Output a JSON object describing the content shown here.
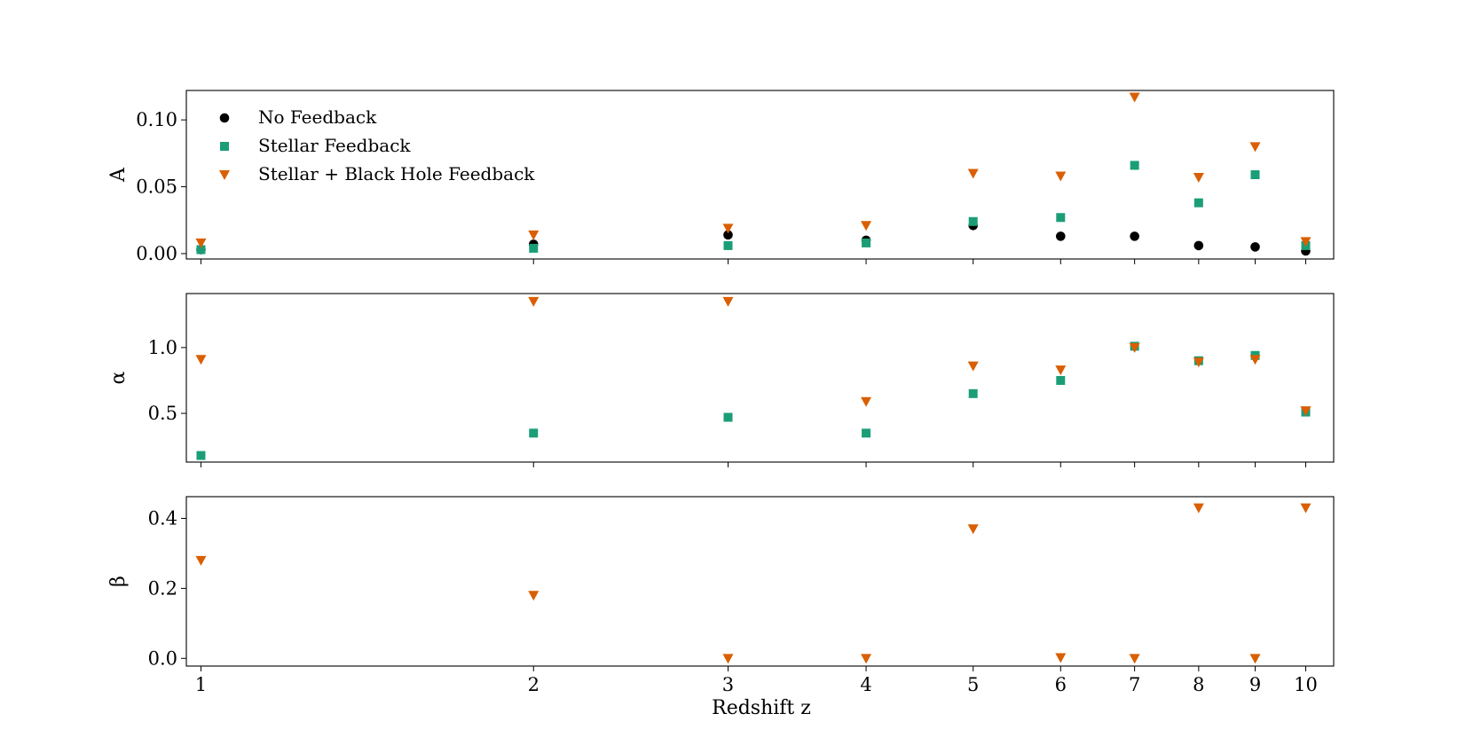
{
  "chart_data": {
    "type": "scatter",
    "x_scale": "log",
    "xlabel": "Redshift z",
    "x_ticks": [
      1,
      2,
      3,
      4,
      5,
      6,
      7,
      8,
      9,
      10
    ],
    "x_tick_labels": [
      "1",
      "2",
      "3",
      "4",
      "5",
      "6",
      "7",
      "8",
      "9",
      "10"
    ],
    "xlim": [
      0.97,
      10.6
    ],
    "grid": false,
    "legend": {
      "placement": "top-left",
      "panel": "A",
      "entries": [
        "No Feedback",
        "Stellar Feedback",
        "Stellar + Black Hole Feedback"
      ]
    },
    "series_styles": [
      {
        "name": "No Feedback",
        "marker": "circle",
        "color": "#000000"
      },
      {
        "name": "Stellar Feedback",
        "marker": "square",
        "color": "#1b9e77"
      },
      {
        "name": "Stellar + Black Hole Feedback",
        "marker": "triangle-down",
        "color": "#d95f02"
      }
    ],
    "panels": [
      {
        "ylabel": "A",
        "ylim": [
          -0.004,
          0.122
        ],
        "y_ticks": [
          0.0,
          0.05,
          0.1
        ],
        "y_tick_labels": [
          "0.00",
          "0.05",
          "0.10"
        ],
        "series": [
          {
            "name": "No Feedback",
            "x": [
              1,
              2,
              3,
              4,
              5,
              6,
              7,
              8,
              9,
              10
            ],
            "y": [
              0.003,
              0.007,
              0.014,
              0.01,
              0.021,
              0.013,
              0.013,
              0.006,
              0.005,
              0.002
            ]
          },
          {
            "name": "Stellar Feedback",
            "x": [
              1,
              2,
              3,
              4,
              5,
              6,
              7,
              8,
              9,
              10
            ],
            "y": [
              0.003,
              0.004,
              0.006,
              0.008,
              0.024,
              0.027,
              0.066,
              0.038,
              0.059,
              0.006
            ]
          },
          {
            "name": "Stellar + Black Hole Feedback",
            "x": [
              1,
              2,
              3,
              4,
              5,
              6,
              7,
              8,
              9,
              10
            ],
            "y": [
              0.008,
              0.014,
              0.019,
              0.021,
              0.06,
              0.058,
              0.117,
              0.057,
              0.08,
              0.009
            ]
          }
        ]
      },
      {
        "ylabel": "α",
        "ylim": [
          0.13,
          1.41
        ],
        "y_ticks": [
          0.5,
          1.0
        ],
        "y_tick_labels": [
          "0.5",
          "1.0"
        ],
        "series": [
          {
            "name": "Stellar Feedback",
            "x": [
              1,
              2,
              3,
              4,
              5,
              6,
              7,
              8,
              9,
              10
            ],
            "y": [
              0.18,
              0.35,
              0.47,
              0.35,
              0.65,
              0.75,
              1.01,
              0.9,
              0.94,
              0.51
            ]
          },
          {
            "name": "Stellar + Black Hole Feedback",
            "x": [
              1,
              2,
              3,
              4,
              5,
              6,
              7,
              8,
              9,
              10
            ],
            "y": [
              0.91,
              1.35,
              1.35,
              0.59,
              0.86,
              0.83,
              1.0,
              0.89,
              0.91,
              0.52
            ]
          }
        ]
      },
      {
        "ylabel": "β",
        "ylim": [
          -0.022,
          0.462
        ],
        "y_ticks": [
          0.0,
          0.2,
          0.4
        ],
        "y_tick_labels": [
          "0.0",
          "0.2",
          "0.4"
        ],
        "series": [
          {
            "name": "Stellar + Black Hole Feedback",
            "x": [
              1,
              2,
              3,
              4,
              5,
              6,
              7,
              8,
              9,
              10
            ],
            "y": [
              0.28,
              0.18,
              0.0,
              0.0,
              0.37,
              0.002,
              0.0,
              0.43,
              0.0,
              0.43
            ]
          }
        ]
      }
    ]
  }
}
